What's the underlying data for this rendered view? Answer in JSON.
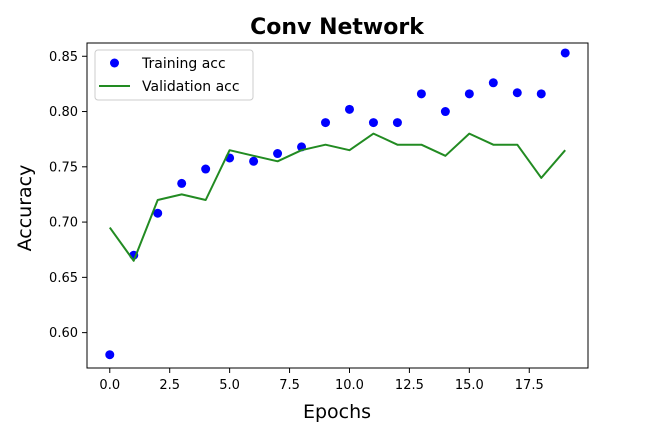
{
  "chart_data": {
    "type": "line",
    "title": "Conv Network",
    "xlabel": "Epochs",
    "ylabel": "Accuracy",
    "xlim": [
      -0.95,
      19.95
    ],
    "ylim": [
      0.568,
      0.862
    ],
    "xticks": [
      0.0,
      2.5,
      5.0,
      7.5,
      10.0,
      12.5,
      15.0,
      17.5
    ],
    "xtick_labels": [
      "0.0",
      "2.5",
      "5.0",
      "7.5",
      "10.0",
      "12.5",
      "15.0",
      "17.5"
    ],
    "yticks": [
      0.6,
      0.65,
      0.7,
      0.75,
      0.8,
      0.85
    ],
    "ytick_labels": [
      "0.60",
      "0.65",
      "0.70",
      "0.75",
      "0.80",
      "0.85"
    ],
    "grid": false,
    "legend_position": "upper left",
    "series": [
      {
        "name": "Training acc",
        "style": "markers",
        "color": "#0000ff",
        "x": [
          0,
          1,
          2,
          3,
          4,
          5,
          6,
          7,
          8,
          9,
          10,
          11,
          12,
          13,
          14,
          15,
          16,
          17,
          18,
          19
        ],
        "y": [
          0.58,
          0.67,
          0.708,
          0.735,
          0.748,
          0.758,
          0.755,
          0.762,
          0.768,
          0.79,
          0.802,
          0.79,
          0.79,
          0.816,
          0.8,
          0.816,
          0.826,
          0.817,
          0.816,
          0.853
        ]
      },
      {
        "name": "Validation acc",
        "style": "line",
        "color": "#228b22",
        "x": [
          0,
          1,
          2,
          3,
          4,
          5,
          6,
          7,
          8,
          9,
          10,
          11,
          12,
          13,
          14,
          15,
          16,
          17,
          18,
          19
        ],
        "y": [
          0.695,
          0.665,
          0.72,
          0.725,
          0.72,
          0.765,
          0.76,
          0.755,
          0.765,
          0.77,
          0.765,
          0.78,
          0.77,
          0.77,
          0.76,
          0.78,
          0.77,
          0.77,
          0.74,
          0.765
        ]
      }
    ]
  }
}
